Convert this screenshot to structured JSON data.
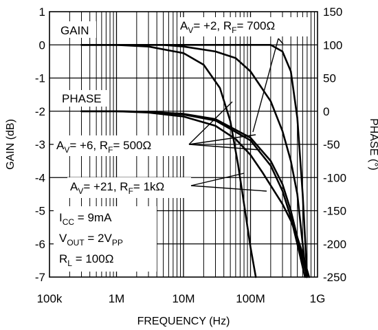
{
  "chart_data": {
    "type": "line",
    "title": "",
    "xlabel": "FREQUENCY (Hz)",
    "ylabel_left": "GAIN (dB)",
    "ylabel_right": "PHASE (°)",
    "x_scale": "log",
    "xlim": [
      100000,
      1000000000
    ],
    "ylim_left": [
      -7,
      1
    ],
    "ylim_right": [
      -250,
      150
    ],
    "grid": true,
    "x_ticks": [
      {
        "value": 100000,
        "label": "100k"
      },
      {
        "value": 1000000,
        "label": "1M"
      },
      {
        "value": 10000000,
        "label": "10M"
      },
      {
        "value": 100000000,
        "label": "100M"
      },
      {
        "value": 1000000000,
        "label": "1G"
      }
    ],
    "y_ticks_left": [
      {
        "value": 1,
        "label": "1"
      },
      {
        "value": 0,
        "label": "0"
      },
      {
        "value": -1,
        "label": "-1"
      },
      {
        "value": -2,
        "label": "-2"
      },
      {
        "value": -3,
        "label": "-3"
      },
      {
        "value": -4,
        "label": "-4"
      },
      {
        "value": -5,
        "label": "-5"
      },
      {
        "value": -6,
        "label": "-6"
      },
      {
        "value": -7,
        "label": "-7"
      }
    ],
    "y_ticks_right": [
      {
        "value": 150,
        "label": "150"
      },
      {
        "value": 100,
        "label": "100"
      },
      {
        "value": 50,
        "label": "50"
      },
      {
        "value": 0,
        "label": "0"
      },
      {
        "value": -50,
        "label": "-50"
      },
      {
        "value": -100,
        "label": "-100"
      },
      {
        "value": -150,
        "label": "-150"
      },
      {
        "value": -200,
        "label": "-200"
      },
      {
        "value": -250,
        "label": "-250"
      }
    ],
    "series": [
      {
        "axis": "gain",
        "x": [
          300000,
          1000000,
          10000000,
          50000000,
          100000000,
          200000000,
          300000000,
          400000000,
          500000000,
          600000000,
          700000000
        ],
        "y": [
          0,
          0,
          0,
          0,
          0,
          0,
          -0.2,
          -0.8,
          -2.2,
          -4.5,
          -7
        ]
      },
      {
        "axis": "gain",
        "x": [
          300000,
          1000000,
          5000000,
          10000000,
          30000000,
          60000000,
          100000000,
          200000000,
          300000000,
          400000000,
          500000000,
          600000000,
          680000000
        ],
        "y": [
          0,
          0,
          0,
          -0.05,
          -0.2,
          -0.4,
          -0.8,
          -1.7,
          -2.6,
          -3.5,
          -4.5,
          -6,
          -7
        ]
      },
      {
        "axis": "gain",
        "x": [
          300000,
          1000000,
          3000000,
          10000000,
          20000000,
          35000000,
          50000000,
          65000000,
          80000000,
          100000000,
          120000000
        ],
        "y": [
          0,
          0,
          -0.05,
          -0.25,
          -0.6,
          -1.3,
          -2.3,
          -3.6,
          -4.8,
          -6.1,
          -7
        ]
      },
      {
        "axis": "phase",
        "x": [
          300000,
          1000000,
          3000000,
          10000000,
          30000000,
          100000000,
          200000000,
          300000000,
          400000000,
          500000000,
          600000000,
          650000000
        ],
        "y": [
          0,
          0,
          -1,
          -5,
          -14,
          -44,
          -82,
          -120,
          -160,
          -200,
          -235,
          -250
        ]
      },
      {
        "axis": "phase",
        "x": [
          300000,
          1000000,
          3000000,
          10000000,
          30000000,
          100000000,
          200000000,
          300000000,
          400000000,
          500000000,
          600000000,
          700000000
        ],
        "y": [
          0,
          0,
          -1,
          -4,
          -12,
          -40,
          -75,
          -110,
          -150,
          -190,
          -225,
          -250
        ]
      },
      {
        "axis": "phase",
        "x": [
          300000,
          1000000,
          3000000,
          10000000,
          30000000,
          60000000,
          100000000,
          150000000,
          200000000,
          300000000,
          400000000,
          500000000,
          600000000,
          700000000,
          750000000
        ],
        "y": [
          0,
          0,
          -2,
          -8,
          -22,
          -42,
          -66,
          -92,
          -112,
          -140,
          -165,
          -190,
          -215,
          -240,
          -250
        ]
      }
    ],
    "annotations": {
      "gain_label": "GAIN",
      "phase_label": "PHASE",
      "av2_rf700": {
        "av": "= +2, R",
        "rf": "= 700Ω"
      },
      "av6_rf500": {
        "av": "= +6, R",
        "rf": "= 500Ω"
      },
      "av21_rf1k": {
        "av": "= +21, R",
        "rf": "= 1kΩ"
      },
      "sym_a": "A",
      "sym_r": "R",
      "sub_v": "V",
      "sub_f": "F",
      "icc": {
        "main": "I",
        "sub": "CC",
        "rest": " = 9mA"
      },
      "vout": {
        "main": "V",
        "sub": "OUT",
        "rest": " = 2V",
        "sub2": "PP"
      },
      "rl": {
        "main": "R",
        "sub": "L",
        "rest": " = 100Ω"
      }
    }
  }
}
